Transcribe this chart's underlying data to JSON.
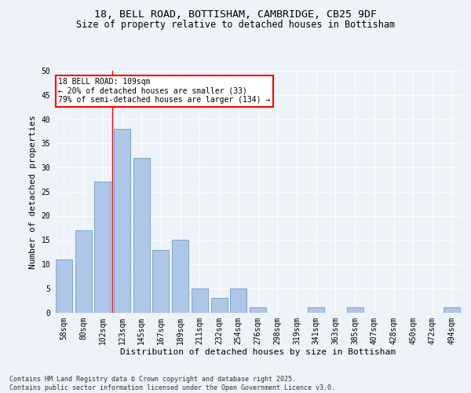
{
  "title_line1": "18, BELL ROAD, BOTTISHAM, CAMBRIDGE, CB25 9DF",
  "title_line2": "Size of property relative to detached houses in Bottisham",
  "xlabel": "Distribution of detached houses by size in Bottisham",
  "ylabel": "Number of detached properties",
  "categories": [
    "58sqm",
    "80sqm",
    "102sqm",
    "123sqm",
    "145sqm",
    "167sqm",
    "189sqm",
    "211sqm",
    "232sqm",
    "254sqm",
    "276sqm",
    "298sqm",
    "319sqm",
    "341sqm",
    "363sqm",
    "385sqm",
    "407sqm",
    "428sqm",
    "450sqm",
    "472sqm",
    "494sqm"
  ],
  "values": [
    11,
    17,
    27,
    38,
    32,
    13,
    15,
    5,
    3,
    5,
    1,
    0,
    0,
    1,
    0,
    1,
    0,
    0,
    0,
    0,
    1
  ],
  "bar_color": "#aec6e8",
  "bar_edge_color": "#5a8fc0",
  "annotation_text": "18 BELL ROAD: 109sqm\n← 20% of detached houses are smaller (33)\n79% of semi-detached houses are larger (134) →",
  "red_line_x": 2.5,
  "ylim": [
    0,
    50
  ],
  "yticks": [
    0,
    5,
    10,
    15,
    20,
    25,
    30,
    35,
    40,
    45,
    50
  ],
  "bg_color": "#eef2f9",
  "plot_bg_color": "#eef2f9",
  "footer_text": "Contains HM Land Registry data © Crown copyright and database right 2025.\nContains public sector information licensed under the Open Government Licence v3.0.",
  "title_fontsize": 9.5,
  "subtitle_fontsize": 8.5,
  "axis_label_fontsize": 8,
  "tick_fontsize": 7,
  "footer_fontsize": 6
}
